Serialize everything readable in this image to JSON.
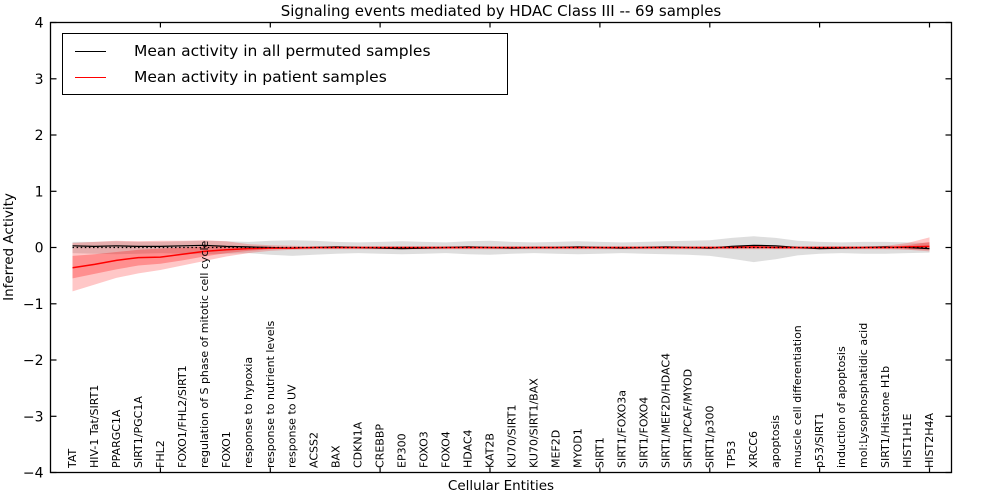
{
  "figure": {
    "title": "Signaling events mediated by HDAC Class III -- 69 samples"
  },
  "legend": {
    "items": [
      {
        "label": "Mean activity in all permuted samples",
        "color": "#000000"
      },
      {
        "label": "Mean activity in patient samples",
        "color": "#ff0000"
      }
    ]
  },
  "axes": {
    "ylabel": "Inferred Activity",
    "xlabel": "Cellular Entities",
    "ytick_values": [
      4,
      3,
      2,
      1,
      0,
      -1,
      -2,
      -3,
      -4
    ],
    "ytick_labels": [
      "4",
      "3",
      "2",
      "1",
      "0",
      "−1",
      "−2",
      "−3",
      "−4"
    ],
    "xtick_values": [
      5,
      10,
      15,
      20,
      25,
      30,
      35,
      40
    ]
  },
  "chart_data": {
    "type": "line",
    "title": "Signaling events mediated by HDAC Class III -- 69 samples",
    "xlabel": "Cellular Entities",
    "ylabel": "Inferred Activity",
    "ylim": [
      -4,
      4
    ],
    "grid": false,
    "legend_position": "upper left",
    "zero_line": {
      "style": "dotted",
      "color": "#000000",
      "y": 0
    },
    "categories": [
      "TAT",
      "HIV-1 Tat/SIRT1",
      "PPARGC1A",
      "SIRT1/PGC1A",
      "FHL2",
      "FOXO1/FHL2/SIRT1",
      "regulation of S phase of mitotic cell cycle",
      "FOXO1",
      "response to hypoxia",
      "response to nutrient levels",
      "response to UV",
      "ACSS2",
      "BAX",
      "CDKN1A",
      "CREBBP",
      "EP300",
      "FOXO3",
      "FOXO4",
      "HDAC4",
      "KAT2B",
      "KU70/SIRT1",
      "KU70/SIRT1/BAX",
      "MEF2D",
      "MYOD1",
      "SIRT1",
      "SIRT1/FOXO3a",
      "SIRT1/FOXO4",
      "SIRT1/MEF2D/HDAC4",
      "SIRT1/PCAF/MYOD",
      "SIRT1/p300",
      "TP53",
      "XRCC6",
      "apoptosis",
      "muscle cell differentiation",
      "p53/SIRT1",
      "induction of apoptosis",
      "mol:Lysophosphatidic acid",
      "SIRT1/Histone H1b",
      "HIST1H1E",
      "HIST2H4A"
    ],
    "series": [
      {
        "name": "Mean activity in all permuted samples",
        "color": "#000000",
        "line_width": 1.2,
        "values": [
          0.03,
          0.02,
          0.03,
          0.02,
          0.02,
          0.03,
          0.04,
          0.02,
          0.01,
          0.0,
          -0.01,
          0.0,
          0.01,
          0.0,
          -0.01,
          -0.02,
          -0.01,
          0.0,
          0.01,
          0.0,
          -0.01,
          0.0,
          0.0,
          0.01,
          0.0,
          -0.01,
          0.0,
          0.01,
          0.0,
          -0.01,
          0.02,
          0.04,
          0.03,
          0.0,
          -0.02,
          -0.01,
          0.0,
          0.01,
          0.0,
          -0.02
        ],
        "bands": [
          {
            "fill": "rgba(0,0,0,0.13)",
            "upper": [
              0.1,
              0.1,
              0.11,
              0.1,
              0.1,
              0.11,
              0.12,
              0.11,
              0.1,
              0.12,
              0.13,
              0.12,
              0.1,
              0.09,
              0.1,
              0.11,
              0.1,
              0.09,
              0.11,
              0.12,
              0.1,
              0.09,
              0.1,
              0.11,
              0.1,
              0.09,
              0.1,
              0.11,
              0.12,
              0.13,
              0.17,
              0.2,
              0.17,
              0.12,
              0.1,
              0.09,
              0.1,
              0.1,
              0.09,
              0.08
            ],
            "lower": [
              -0.1,
              -0.11,
              -0.12,
              -0.11,
              -0.1,
              -0.11,
              -0.12,
              -0.11,
              -0.1,
              -0.13,
              -0.15,
              -0.13,
              -0.11,
              -0.1,
              -0.11,
              -0.12,
              -0.11,
              -0.1,
              -0.12,
              -0.13,
              -0.11,
              -0.1,
              -0.11,
              -0.12,
              -0.11,
              -0.1,
              -0.11,
              -0.12,
              -0.13,
              -0.15,
              -0.2,
              -0.26,
              -0.21,
              -0.14,
              -0.11,
              -0.1,
              -0.11,
              -0.11,
              -0.1,
              -0.09
            ]
          }
        ]
      },
      {
        "name": "Mean activity in patient samples",
        "color": "#ff0000",
        "line_width": 1.5,
        "values": [
          -0.36,
          -0.3,
          -0.23,
          -0.18,
          -0.17,
          -0.12,
          -0.07,
          -0.04,
          -0.02,
          -0.01,
          -0.01,
          0.0,
          0.0,
          0.0,
          0.0,
          0.0,
          0.0,
          0.0,
          0.0,
          0.0,
          0.0,
          0.0,
          0.0,
          0.0,
          0.0,
          0.0,
          0.0,
          0.0,
          0.0,
          0.0,
          0.0,
          0.01,
          0.0,
          0.0,
          0.0,
          0.0,
          0.0,
          0.0,
          0.01,
          0.02
        ],
        "bands": [
          {
            "fill": "rgba(255,0,0,0.22)",
            "upper": [
              0.08,
              0.1,
              0.12,
              0.11,
              0.12,
              0.12,
              0.13,
              0.11,
              0.06,
              0.04,
              0.03,
              0.02,
              0.02,
              0.02,
              0.02,
              0.02,
              0.02,
              0.02,
              0.02,
              0.02,
              0.02,
              0.02,
              0.02,
              0.02,
              0.02,
              0.02,
              0.02,
              0.02,
              0.02,
              0.02,
              0.02,
              0.03,
              0.02,
              0.02,
              0.02,
              0.02,
              0.02,
              0.03,
              0.08,
              0.18
            ],
            "lower": [
              -0.78,
              -0.66,
              -0.54,
              -0.46,
              -0.4,
              -0.32,
              -0.24,
              -0.16,
              -0.1,
              -0.06,
              -0.04,
              -0.03,
              -0.03,
              -0.03,
              -0.03,
              -0.03,
              -0.03,
              -0.03,
              -0.03,
              -0.03,
              -0.03,
              -0.03,
              -0.03,
              -0.03,
              -0.03,
              -0.03,
              -0.03,
              -0.03,
              -0.03,
              -0.03,
              -0.03,
              -0.03,
              -0.03,
              -0.03,
              -0.03,
              -0.03,
              -0.03,
              -0.03,
              -0.04,
              -0.07
            ]
          },
          {
            "fill": "rgba(255,0,0,0.28)",
            "upper": [
              -0.15,
              -0.12,
              -0.08,
              -0.04,
              -0.02,
              0.0,
              0.02,
              0.02,
              0.02,
              0.01,
              0.01,
              0.01,
              0.01,
              0.01,
              0.01,
              0.01,
              0.01,
              0.01,
              0.01,
              0.01,
              0.01,
              0.01,
              0.01,
              0.01,
              0.01,
              0.01,
              0.01,
              0.01,
              0.01,
              0.01,
              0.01,
              0.01,
              0.01,
              0.01,
              0.01,
              0.01,
              0.01,
              0.01,
              0.04,
              0.1
            ],
            "lower": [
              -0.55,
              -0.47,
              -0.39,
              -0.32,
              -0.29,
              -0.23,
              -0.16,
              -0.1,
              -0.06,
              -0.03,
              -0.02,
              -0.02,
              -0.02,
              -0.02,
              -0.02,
              -0.02,
              -0.02,
              -0.02,
              -0.02,
              -0.02,
              -0.02,
              -0.02,
              -0.02,
              -0.02,
              -0.02,
              -0.02,
              -0.02,
              -0.02,
              -0.02,
              -0.02,
              -0.02,
              -0.02,
              -0.02,
              -0.02,
              -0.02,
              -0.02,
              -0.02,
              -0.02,
              -0.03,
              -0.04
            ]
          }
        ]
      }
    ]
  }
}
